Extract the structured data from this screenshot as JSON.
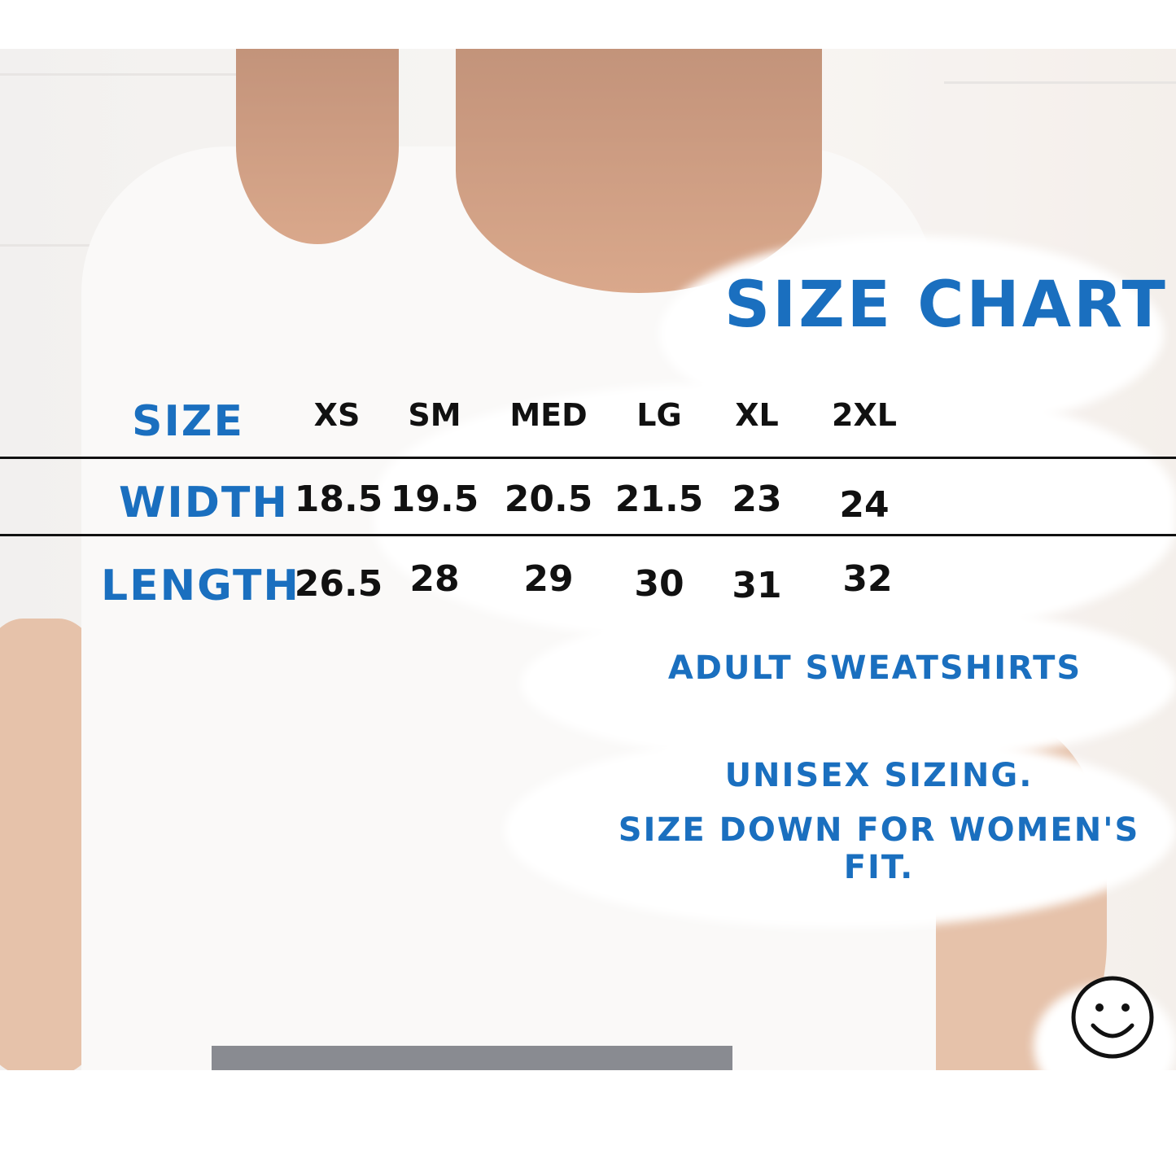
{
  "title": "SIZE CHART",
  "table": {
    "row_label_header": "SIZE",
    "sizes": [
      "XS",
      "SM",
      "MED",
      "LG",
      "XL",
      "2XL"
    ],
    "rows": [
      {
        "label": "WIDTH",
        "values": [
          "18.5",
          "19.5",
          "20.5",
          "21.5",
          "23",
          "24"
        ]
      },
      {
        "label": "LENGTH",
        "values": [
          "26.5",
          "28",
          "29",
          "30",
          "31",
          "32"
        ]
      }
    ]
  },
  "product": "ADULT SWEATSHIRTS",
  "notes": [
    "UNISEX SIZING.",
    "SIZE DOWN FOR WOMEN'S FIT."
  ],
  "colors": {
    "accent": "#1a6fbf",
    "text": "#111111",
    "cloud": "#ffffff"
  },
  "icons": {
    "smiley": "smiley-face-icon"
  }
}
